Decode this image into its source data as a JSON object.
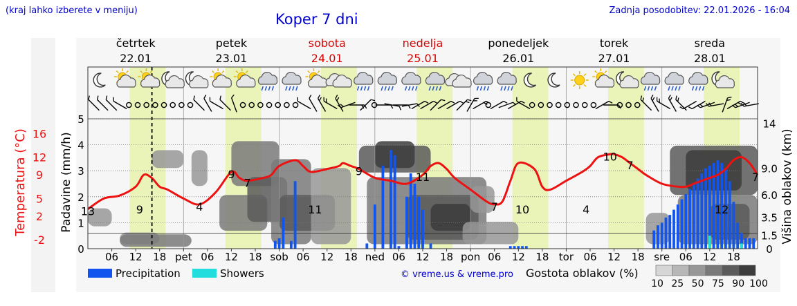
{
  "header": {
    "hint": "(kraj lahko izberete v meniju)",
    "title": "Koper 7 dni",
    "updated": "Zadnja posodobitev: 22.01.2026 - 16:04"
  },
  "days": [
    {
      "name": "četrtek",
      "date": "22.01",
      "weekend": false
    },
    {
      "name": "petek",
      "date": "23.01",
      "weekend": false
    },
    {
      "name": "sobota",
      "date": "24.01",
      "weekend": true
    },
    {
      "name": "nedelja",
      "date": "25.01",
      "weekend": true
    },
    {
      "name": "ponedeljek",
      "date": "26.01",
      "weekend": false
    },
    {
      "name": "torek",
      "date": "27.01",
      "weekend": false
    },
    {
      "name": "sreda",
      "date": "28.01",
      "weekend": false
    }
  ],
  "icons": [
    "moon",
    "sun-cloud",
    "sun-cloud",
    "cloud-moon",
    "cloud-moon",
    "sun-cloud",
    "sun-cloud",
    "cloud-rain",
    "cloud-rain",
    "sun-cloud",
    "cloud",
    "cloud-rain",
    "cloud-rain",
    "cloud-rain",
    "cloud-rain",
    "cloud",
    "cloud-rain",
    "cloud-rain",
    "moon",
    "moon",
    "sun",
    "sun-cloud",
    "cloud-moon",
    "cloud-rain",
    "cloud-rain",
    "cloud-rain",
    "cloud-moon"
  ],
  "legend": {
    "precipitation": "Precipitation",
    "showers": "Showers",
    "credit": "© vreme.us & vreme.pro",
    "density_title": "Gostota oblakov (%)",
    "density_levels": [
      "10",
      "25",
      "50",
      "75",
      "90",
      "100"
    ],
    "density_colors": [
      "#d6d6d6",
      "#b7b7b7",
      "#989898",
      "#7a7a7a",
      "#5b5b5b",
      "#3c3c3c"
    ]
  },
  "colors": {
    "precip": "#1155ee",
    "showers": "#22dddd",
    "temp": "#ee1111",
    "day_band": "#eaf3b8",
    "weekend_text": "#dd0000",
    "axis_text": "#000000"
  },
  "chart_data": {
    "type": "line",
    "title": "Koper 7 dni",
    "x_unit": "hour from 22.01 00:00",
    "x_range": [
      0,
      168
    ],
    "x_tick_labels": [
      "06",
      "12",
      "18",
      "pet",
      "06",
      "12",
      "18",
      "sob",
      "06",
      "12",
      "18",
      "ned",
      "06",
      "12",
      "18",
      "pon",
      "06",
      "12",
      "18",
      "tor",
      "06",
      "12",
      "18",
      "sre",
      "06",
      "12",
      "18"
    ],
    "now_hour": 16.07,
    "temperature": {
      "label": "Temperatura (°C)",
      "ylim": [
        -3.5,
        18.5
      ],
      "ticks": [
        16,
        12,
        9,
        5,
        2,
        -2
      ],
      "tick_labels": [
        "16",
        "12",
        "9",
        "5",
        "2",
        "-2"
      ],
      "x": [
        0,
        4,
        8,
        12,
        14,
        16,
        18,
        20,
        24,
        28,
        32,
        36,
        38,
        40,
        44,
        46,
        48,
        52,
        54,
        56,
        60,
        63,
        64,
        66,
        68,
        72,
        76,
        80,
        84,
        86,
        88,
        90,
        92,
        96,
        100,
        102,
        104,
        106,
        108,
        112,
        114,
        116,
        120,
        124,
        126,
        128,
        131,
        132,
        134,
        136,
        138,
        140,
        144,
        148,
        150,
        152,
        154,
        156,
        158,
        160,
        162,
        164,
        166,
        168
      ],
      "values": [
        3.2,
        5.0,
        5.5,
        7.0,
        9.0,
        8.5,
        7.0,
        6.5,
        5.0,
        4.0,
        6.0,
        9.5,
        8.5,
        8.0,
        8.5,
        9.0,
        10.5,
        11.5,
        10.5,
        9.5,
        10.0,
        10.5,
        11.0,
        10.5,
        10.0,
        8.5,
        8.0,
        7.5,
        9.0,
        10.5,
        11.0,
        10.0,
        8.5,
        6.5,
        4.5,
        4.0,
        4.5,
        8.0,
        11.0,
        10.0,
        7.0,
        6.5,
        8.0,
        9.5,
        10.5,
        12.0,
        12.5,
        12.5,
        12.0,
        11.0,
        10.0,
        9.0,
        7.5,
        7.0,
        7.0,
        7.5,
        8.0,
        8.5,
        9.0,
        10.0,
        11.5,
        12.0,
        11.0,
        9.0
      ],
      "value_labels": [
        {
          "x": 0,
          "value": "13"
        },
        {
          "x": 13,
          "value": "9"
        },
        {
          "x": 28,
          "value": "4"
        },
        {
          "x": 36,
          "value": "9"
        },
        {
          "x": 40,
          "value": "7"
        },
        {
          "x": 57,
          "value": "11"
        },
        {
          "x": 68,
          "value": "9"
        },
        {
          "x": 84,
          "value": "11"
        },
        {
          "x": 102,
          "value": "7"
        },
        {
          "x": 109,
          "value": "10"
        },
        {
          "x": 125,
          "value": "4"
        },
        {
          "x": 131,
          "value": "10"
        },
        {
          "x": 136,
          "value": "7"
        },
        {
          "x": 159,
          "value": "12"
        },
        {
          "x": 168,
          "value": "7"
        }
      ]
    },
    "precipitation": {
      "label": "Padavine (mm/h)",
      "ylim": [
        0,
        5
      ],
      "ticks": [
        0,
        1,
        2,
        3,
        4,
        5
      ],
      "x": [
        47,
        48,
        49,
        51,
        52,
        70,
        72,
        74,
        76,
        77,
        78,
        80,
        81,
        82,
        83,
        84,
        86,
        106,
        107,
        108,
        109,
        110,
        142,
        143,
        144,
        145,
        146,
        147,
        148,
        149,
        150,
        151,
        152,
        153,
        154,
        155,
        156,
        157,
        158,
        159,
        160,
        161,
        162,
        163,
        164,
        165,
        166,
        167
      ],
      "values": [
        0.3,
        0.4,
        1.2,
        0.3,
        2.6,
        0.2,
        1.7,
        3.2,
        3.8,
        3.6,
        0.1,
        2.0,
        2.9,
        2.5,
        2.0,
        1.5,
        0.2,
        0.1,
        0.1,
        0.1,
        0.1,
        0.1,
        0.7,
        0.9,
        1.0,
        1.2,
        1.3,
        1.5,
        1.7,
        1.9,
        2.1,
        2.3,
        2.5,
        2.7,
        2.9,
        3.1,
        3.2,
        3.3,
        3.4,
        3.3,
        3.1,
        2.6,
        1.8,
        1.0,
        0.6,
        0.4,
        0.4,
        0.4
      ],
      "showers_x": [
        156,
        164
      ],
      "showers_values": [
        0.5,
        0.2
      ]
    },
    "cloud_height": {
      "label": "Višina oblakov (km)",
      "ylim": [
        0,
        14.5
      ],
      "ticks": [
        0,
        1.5,
        3.5,
        6.0,
        9.0,
        14
      ],
      "tick_labels": [
        "0",
        "1.5",
        "3.5",
        "6.0",
        "9.0",
        "14"
      ]
    },
    "cloud_density": {
      "unit": "%",
      "blobs": [
        {
          "x": [
            0,
            6
          ],
          "km": [
            2.5,
            4.5
          ],
          "d": 2
        },
        {
          "x": [
            8,
            18
          ],
          "km": [
            0.5,
            1.8
          ],
          "d": 2
        },
        {
          "x": [
            8,
            26
          ],
          "km": [
            0.2,
            1.6
          ],
          "d": 3
        },
        {
          "x": [
            16,
            24
          ],
          "km": [
            9,
            11
          ],
          "d": 2
        },
        {
          "x": [
            26,
            30
          ],
          "km": [
            7,
            11
          ],
          "d": 2
        },
        {
          "x": [
            33,
            45
          ],
          "km": [
            2,
            6
          ],
          "d": 3
        },
        {
          "x": [
            36,
            48
          ],
          "km": [
            7,
            12
          ],
          "d": 3
        },
        {
          "x": [
            40,
            50
          ],
          "km": [
            3,
            8
          ],
          "d": 4
        },
        {
          "x": [
            46,
            56
          ],
          "km": [
            0.5,
            10
          ],
          "d": 3
        },
        {
          "x": [
            48,
            62
          ],
          "km": [
            2,
            6
          ],
          "d": 4
        },
        {
          "x": [
            56,
            66
          ],
          "km": [
            0.5,
            9
          ],
          "d": 2
        },
        {
          "x": [
            68,
            86
          ],
          "km": [
            8.5,
            11.5
          ],
          "d": 4
        },
        {
          "x": [
            72,
            82
          ],
          "km": [
            9,
            12
          ],
          "d": 5
        },
        {
          "x": [
            70,
            100
          ],
          "km": [
            0.5,
            8
          ],
          "d": 3
        },
        {
          "x": [
            80,
            98
          ],
          "km": [
            1,
            6
          ],
          "d": 4
        },
        {
          "x": [
            86,
            96
          ],
          "km": [
            2,
            5
          ],
          "d": 5
        },
        {
          "x": [
            94,
            108
          ],
          "km": [
            0.5,
            3
          ],
          "d": 2
        },
        {
          "x": [
            96,
            102
          ],
          "km": [
            4,
            7
          ],
          "d": 2
        },
        {
          "x": [
            140,
            146
          ],
          "km": [
            0.5,
            4
          ],
          "d": 2
        },
        {
          "x": [
            146,
            168
          ],
          "km": [
            6,
            11.5
          ],
          "d": 4
        },
        {
          "x": [
            150,
            164
          ],
          "km": [
            6.5,
            11
          ],
          "d": 5
        },
        {
          "x": [
            148,
            168
          ],
          "km": [
            0.5,
            6
          ],
          "d": 3
        },
        {
          "x": [
            156,
            166
          ],
          "km": [
            1,
            5
          ],
          "d": 4
        }
      ]
    },
    "wind": {
      "x_step_hours": 3,
      "directions_deg": [
        315,
        315,
        315,
        300,
        0,
        0,
        0,
        0,
        0,
        0,
        0,
        0,
        315,
        330,
        300,
        315,
        340,
        0,
        0,
        0,
        0,
        0,
        0,
        0,
        300,
        330,
        330,
        300,
        330,
        250,
        90,
        45,
        0,
        90,
        100,
        90,
        80,
        60,
        60,
        45,
        60,
        60,
        45,
        30,
        60,
        0,
        60,
        70,
        60,
        300,
        0,
        0,
        0,
        0,
        0,
        0,
        0,
        0,
        60,
        90,
        0,
        0,
        0,
        315,
        330,
        300,
        330,
        315,
        240,
        240,
        250,
        260,
        20,
        60,
        250,
        260
      ],
      "speed_class": [
        2,
        2,
        2,
        2,
        0,
        0,
        0,
        0,
        0,
        0,
        0,
        0,
        2,
        2,
        2,
        2,
        2,
        0,
        0,
        0,
        0,
        0,
        0,
        0,
        2,
        2,
        3,
        3,
        3,
        3,
        3,
        2,
        0,
        2,
        2,
        2,
        2,
        2,
        2,
        2,
        2,
        2,
        3,
        3,
        3,
        0,
        2,
        2,
        3,
        2,
        0,
        0,
        0,
        0,
        0,
        0,
        0,
        0,
        2,
        2,
        0,
        0,
        0,
        3,
        3,
        3,
        3,
        3,
        2,
        2,
        3,
        3,
        3,
        3,
        3,
        3
      ]
    }
  }
}
